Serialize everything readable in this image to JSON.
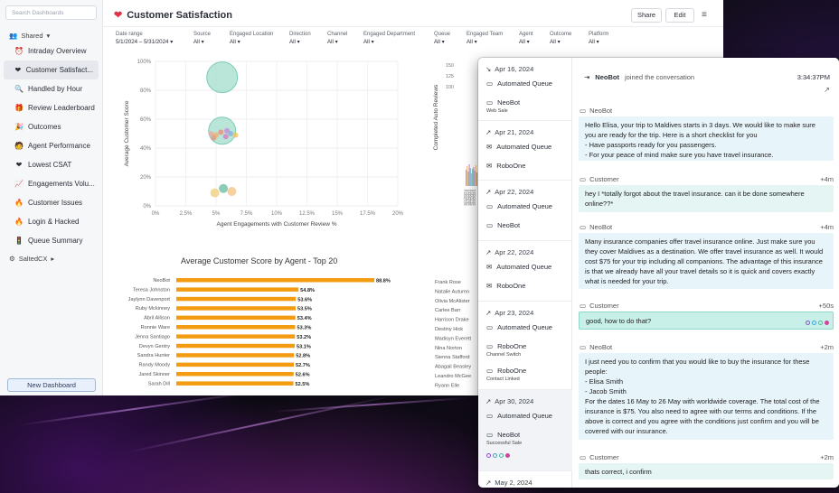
{
  "sidebar": {
    "search_placeholder": "Search Dashboards",
    "shared_label": "Shared",
    "items": [
      {
        "label": "Intraday Overview",
        "icon": "alarm-clock-icon",
        "glyph": "⏰",
        "active": false
      },
      {
        "label": "Customer Satisfact...",
        "icon": "heart-icon",
        "glyph": "❤",
        "active": true
      },
      {
        "label": "Handled by Hour",
        "icon": "magnifier-icon",
        "glyph": "🔍",
        "active": false
      },
      {
        "label": "Review Leaderboard",
        "icon": "gift-icon",
        "glyph": "🎁",
        "active": false
      },
      {
        "label": "Outcomes",
        "icon": "party-popper-icon",
        "glyph": "🎉",
        "active": false
      },
      {
        "label": "Agent Performance",
        "icon": "person-icon",
        "glyph": "🧑",
        "active": false
      },
      {
        "label": "Lowest CSAT",
        "icon": "heart-icon",
        "glyph": "❤",
        "active": false
      },
      {
        "label": "Engagements Volu...",
        "icon": "chart-icon",
        "glyph": "📈",
        "active": false
      },
      {
        "label": "Customer Issues",
        "icon": "fire-icon",
        "glyph": "🔥",
        "active": false
      },
      {
        "label": "Login & Hacked",
        "icon": "fire-icon",
        "glyph": "🔥",
        "active": false
      },
      {
        "label": "Queue Summary",
        "icon": "traffic-light-icon",
        "glyph": "🚦",
        "active": false
      }
    ],
    "org_label": "SaltedCX",
    "new_dashboard": "New Dashboard"
  },
  "header": {
    "title": "Customer Satisfaction",
    "share": "Share",
    "edit": "Edit"
  },
  "filters": [
    {
      "label": "Date range",
      "value": "5/1/2024 – 5/31/2024"
    },
    {
      "label": "Source",
      "value": "All"
    },
    {
      "label": "Engaged Location",
      "value": "All"
    },
    {
      "label": "Direction",
      "value": "All"
    },
    {
      "label": "Channel",
      "value": "All"
    },
    {
      "label": "Engaged Department",
      "value": "All"
    },
    {
      "label": "Queue",
      "value": "All"
    },
    {
      "label": "Engaged Team",
      "value": "All"
    },
    {
      "label": "Agent",
      "value": "All"
    },
    {
      "label": "Outcome",
      "value": "All"
    },
    {
      "label": "Platform",
      "value": "All"
    }
  ],
  "chart_data": [
    {
      "type": "scatter",
      "xlabel": "Agent Engagements with Customer Review %",
      "ylabel": "Average Customer Score",
      "x_ticks": [
        "0%",
        "2.5%",
        "5%",
        "7.5%",
        "10%",
        "12.5%",
        "15%",
        "17.5%",
        "20%"
      ],
      "y_ticks": [
        "100%",
        "80%",
        "60%",
        "40%",
        "20%",
        "0%"
      ],
      "xlim": [
        0,
        20
      ],
      "ylim": [
        0,
        100
      ],
      "points": [
        {
          "x": 5.5,
          "y": 89,
          "r": 17,
          "color": "#a8e0d0"
        },
        {
          "x": 5.5,
          "y": 52,
          "r": 15,
          "color": "#a8e0d0"
        },
        {
          "x": 4.6,
          "y": 50,
          "r": 3,
          "color": "#f2a7a0"
        },
        {
          "x": 5.0,
          "y": 49,
          "r": 3,
          "color": "#f0b36a"
        },
        {
          "x": 5.4,
          "y": 51,
          "r": 3,
          "color": "#e88f7a"
        },
        {
          "x": 5.8,
          "y": 48,
          "r": 3,
          "color": "#d77cc0"
        },
        {
          "x": 6.2,
          "y": 50,
          "r": 3,
          "color": "#7db7e0"
        },
        {
          "x": 6.6,
          "y": 49,
          "r": 3,
          "color": "#f0c060"
        },
        {
          "x": 4.8,
          "y": 47,
          "r": 3,
          "color": "#e09a80"
        },
        {
          "x": 5.9,
          "y": 52,
          "r": 3,
          "color": "#c58bd6"
        },
        {
          "x": 5.6,
          "y": 12,
          "r": 5,
          "color": "#6fc0a8"
        },
        {
          "x": 6.3,
          "y": 10,
          "r": 5,
          "color": "#f3c48a"
        },
        {
          "x": 4.9,
          "y": 9,
          "r": 5,
          "color": "#f2d080"
        }
      ]
    },
    {
      "type": "bar",
      "title": "Average Customer Score by Agent - Top 20",
      "categories": [
        "NeoBot",
        "Teresa Johnston",
        "Jaylynn Davenport",
        "Ruby Mckinney",
        "Abril Allison",
        "Ronnie Ware",
        "Jenna Santiago",
        "Devyn Gentry",
        "Sandra Hunter",
        "Randy Moody",
        "Jared Skinner",
        "Sarah Dill"
      ],
      "values": [
        88.8,
        54.8,
        53.6,
        53.5,
        53.4,
        53.3,
        53.2,
        53.1,
        52.8,
        52.7,
        52.6,
        52.5
      ],
      "labels": [
        "88.8%",
        "54.8%",
        "53.6%",
        "53.5%",
        "53.4%",
        "53.3%",
        "53.2%",
        "53.1%",
        "52.8%",
        "52.7%",
        "52.6%",
        "52.5%"
      ],
      "xlim": [
        0,
        90
      ]
    },
    {
      "type": "bar",
      "ylabel": "Completed Auto Reviews",
      "y_ticks": [
        "150",
        "125",
        "100"
      ],
      "x_ticks": [
        "5/1/2024",
        "5/3/2024",
        "5/5/2024",
        "5/7/2024",
        "5/9/2024"
      ],
      "values": [
        18,
        22,
        16,
        24,
        20,
        14,
        19,
        21,
        17,
        23,
        15
      ],
      "ylim": [
        0,
        150
      ]
    },
    {
      "type": "bar",
      "categories_partial": [
        "Frank Rose",
        "Natalie Autumn",
        "Olivia McAlister",
        "Carlee Barr",
        "Harrison Drake",
        "Destiny Hick",
        "Madisyn Everett",
        "Nina Norton",
        "Sienna Stafford",
        "Abagail Beasley",
        "Leandro McGee",
        "Ryann Elle"
      ]
    }
  ],
  "conversations": [
    {
      "date": "Apr 16, 2024",
      "arrow": "↘",
      "lines": [
        {
          "icon": "chat-icon",
          "glyph": "▭",
          "text": "Automated Queue",
          "sub": ""
        },
        {
          "icon": "chat-icon",
          "glyph": "▭",
          "text": "NeoBot",
          "sub": "Web Sale"
        }
      ]
    },
    {
      "date": "Apr 21, 2024",
      "arrow": "↗",
      "lines": [
        {
          "icon": "mail-icon",
          "glyph": "✉",
          "text": "Automated Queue",
          "sub": ""
        },
        {
          "icon": "mail-icon",
          "glyph": "✉",
          "text": "RoboOne",
          "sub": ""
        }
      ]
    },
    {
      "date": "Apr 22, 2024",
      "arrow": "↗",
      "lines": [
        {
          "icon": "chat-icon",
          "glyph": "▭",
          "text": "Automated Queue",
          "sub": ""
        },
        {
          "icon": "chat-icon",
          "glyph": "▭",
          "text": "NeoBot",
          "sub": ""
        }
      ]
    },
    {
      "date": "Apr 22, 2024",
      "arrow": "↗",
      "lines": [
        {
          "icon": "mail-icon",
          "glyph": "✉",
          "text": "Automated Queue",
          "sub": ""
        },
        {
          "icon": "mail-icon",
          "glyph": "✉",
          "text": "RoboOne",
          "sub": ""
        }
      ]
    },
    {
      "date": "Apr 23, 2024",
      "arrow": "↗",
      "lines": [
        {
          "icon": "chat-icon",
          "glyph": "▭",
          "text": "Automated Queue",
          "sub": ""
        },
        {
          "icon": "chat-icon",
          "glyph": "▭",
          "text": "RoboOne",
          "sub": "Channel Switch"
        },
        {
          "icon": "chat-icon",
          "glyph": "▭",
          "text": "RoboOne",
          "sub": "Contact Linked"
        }
      ]
    },
    {
      "date": "Apr 30, 2024",
      "arrow": "↗",
      "lines": [
        {
          "icon": "chat-icon",
          "glyph": "▭",
          "text": "Automated Queue",
          "sub": ""
        },
        {
          "icon": "chat-icon",
          "glyph": "▭",
          "text": "NeoBot",
          "sub": "Successful Sale"
        }
      ]
    },
    {
      "date": "May 2, 2024",
      "arrow": "↗",
      "lines": []
    }
  ],
  "thread": {
    "joined_name": "NeoBot",
    "joined_text": "joined the conversation",
    "joined_time": "3:34:37PM",
    "messages": [
      {
        "author": "NeoBot",
        "delta": "",
        "kind": "bot",
        "lines": [
          "Hello Elisa, your trip to Maldives starts in 3 days. We would like to make sure you are ready for the trip. Here is a short checklist for you",
          "- Have passports ready for you passengers.",
          "- For your peace of mind make sure you have travel insurance."
        ]
      },
      {
        "author": "Customer",
        "delta": "+4m",
        "kind": "cust",
        "lines": [
          "hey I *totally forgot about the travel insurance. can it be done somewhere online??*"
        ]
      },
      {
        "author": "NeoBot",
        "delta": "+4m",
        "kind": "bot",
        "lines": [
          "Many insurance companies offer travel insurance online. Just make sure you they cover Maldives as a destination. We offer travel insurance as well. It would cost $75 for your trip including all companions. The advantage of this insurance is that we already have all your travel details so it is quick and covers exactly what is needed for your trip."
        ]
      },
      {
        "author": "Customer",
        "delta": "+50s",
        "kind": "hl",
        "lines": [
          "good, how to do that?"
        ]
      },
      {
        "author": "NeoBot",
        "delta": "+2m",
        "kind": "bot",
        "lines": [
          "I just need you to confirm that you would like to buy the insurance for these people:",
          "- Elisa Smith",
          "- Jacob Smith",
          "For the dates 16 May to 26 May with worldwide coverage. The total cost of the insurance is $75. You also need to agree with our terms and conditions. If the above is correct and you agree with the conditions just confirm and you will be covered with our insurance."
        ]
      },
      {
        "author": "Customer",
        "delta": "+2m",
        "kind": "cust",
        "lines": [
          "thats correct, i confirm"
        ]
      }
    ]
  },
  "colors": {
    "accent_bar": "#f39c12",
    "teal": "#a8e0d0",
    "bubble_bot": "#e7f4fa",
    "bubble_customer": "#e4f5f4"
  }
}
